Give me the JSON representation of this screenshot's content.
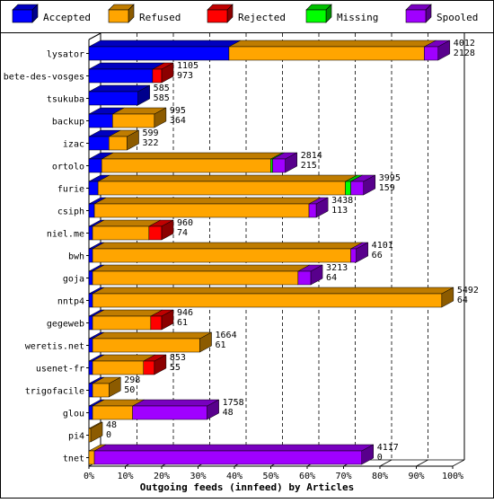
{
  "chart_data": {
    "type": "bar",
    "orientation": "horizontal",
    "stacked": true,
    "three_d": true,
    "title": "Outgoing feeds (innfeed) by Articles",
    "xlabel": "",
    "ylabel": "",
    "xlim": [
      0,
      100
    ],
    "x_unit": "%",
    "x_ticks": [
      "0%",
      "10%",
      "20%",
      "30%",
      "40%",
      "50%",
      "60%",
      "70%",
      "80%",
      "90%",
      "100%"
    ],
    "grid": true,
    "legend_position": "top",
    "series": [
      {
        "name": "Accepted",
        "color": "#0000ff"
      },
      {
        "name": "Refused",
        "color": "#ffa500"
      },
      {
        "name": "Rejected",
        "color": "#ff0000"
      },
      {
        "name": "Missing",
        "color": "#00ff00"
      },
      {
        "name": "Spooled",
        "color": "#a000ff"
      }
    ],
    "categories": [
      {
        "name": "lysator",
        "offered": "4012",
        "accepted": "2128",
        "pct": [
          38.5,
          53.7,
          0,
          0,
          3.8
        ]
      },
      {
        "name": "bete-des-vosges",
        "offered": "1105",
        "accepted": "973",
        "pct": [
          17.5,
          0,
          2.5,
          0,
          0
        ]
      },
      {
        "name": "tsukuba",
        "offered": "585",
        "accepted": "585",
        "pct": [
          13.5,
          0,
          0,
          0,
          0
        ]
      },
      {
        "name": "backup",
        "offered": "995",
        "accepted": "364",
        "pct": [
          6.5,
          11.5,
          0,
          0,
          0
        ]
      },
      {
        "name": "izac",
        "offered": "599",
        "accepted": "322",
        "pct": [
          5.5,
          5.0,
          0,
          0,
          0
        ]
      },
      {
        "name": "ortolo",
        "offered": "2814",
        "accepted": "215",
        "pct": [
          3.5,
          46.5,
          0,
          0.5,
          3.5
        ]
      },
      {
        "name": "furie",
        "offered": "3995",
        "accepted": "159",
        "pct": [
          2.5,
          68.0,
          0,
          1.5,
          3.5
        ]
      },
      {
        "name": "csiph",
        "offered": "3438",
        "accepted": "113",
        "pct": [
          1.5,
          59.0,
          0,
          0,
          2.0
        ]
      },
      {
        "name": "niel.me",
        "offered": "960",
        "accepted": "74",
        "pct": [
          1.0,
          15.5,
          3.5,
          0,
          0
        ]
      },
      {
        "name": "bwh",
        "offered": "4101",
        "accepted": "66",
        "pct": [
          1.0,
          71.0,
          0,
          0,
          1.5
        ]
      },
      {
        "name": "goja",
        "offered": "3213",
        "accepted": "64",
        "pct": [
          1.0,
          56.5,
          0,
          0,
          3.5
        ]
      },
      {
        "name": "nntp4",
        "offered": "5492",
        "accepted": "64",
        "pct": [
          1.0,
          96.0,
          0,
          0,
          0
        ]
      },
      {
        "name": "gegeweb",
        "offered": "946",
        "accepted": "61",
        "pct": [
          1.0,
          16.0,
          3.0,
          0,
          0
        ]
      },
      {
        "name": "weretis.net",
        "offered": "1664",
        "accepted": "61",
        "pct": [
          1.0,
          29.5,
          0,
          0,
          0
        ]
      },
      {
        "name": "usenet-fr",
        "offered": "853",
        "accepted": "55",
        "pct": [
          1.0,
          14.0,
          3.0,
          0,
          0
        ]
      },
      {
        "name": "trigofacile",
        "offered": "298",
        "accepted": "50",
        "pct": [
          1.0,
          4.5,
          0,
          0,
          0
        ]
      },
      {
        "name": "glou",
        "offered": "1758",
        "accepted": "48",
        "pct": [
          1.0,
          11.0,
          0,
          0,
          20.5
        ]
      },
      {
        "name": "pi4",
        "offered": "48",
        "accepted": "0",
        "pct": [
          0,
          0.5,
          0,
          0,
          0
        ]
      },
      {
        "name": "tnet",
        "offered": "4117",
        "accepted": "0",
        "pct": [
          0,
          1.5,
          0,
          0,
          73.5
        ]
      }
    ]
  }
}
